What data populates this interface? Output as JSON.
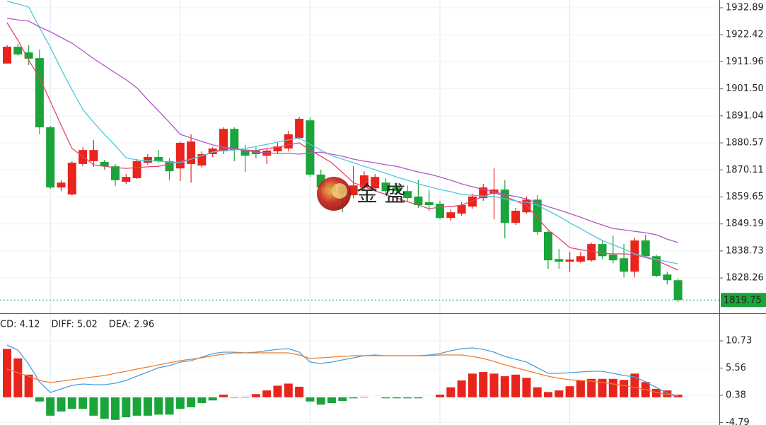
{
  "chart_data": [
    {
      "type": "candlestick",
      "watermark": "金 盛",
      "up_color": "#e8241c",
      "down_color": "#1aa43a",
      "open": [
        1911.3,
        1917.8,
        1915.6,
        1913.4,
        1886.6,
        1863.3,
        1860.6,
        1872.4,
        1873.5,
        1873.2,
        1871.5,
        1865.5,
        1866.9,
        1872.9,
        1875.1,
        1873.5,
        1870.7,
        1872.4,
        1871.8,
        1876.2,
        1877.3,
        1886.0,
        1877.8,
        1877.6,
        1875.6,
        1877.3,
        1878.4,
        1882.5,
        1889.3,
        1868.3,
        1864.1,
        1863.6,
        1860.3,
        1863.3,
        1863.0,
        1865.2,
        1863.3,
        1861.9,
        1859.8,
        1857.6,
        1857.0,
        1851.5,
        1853.2,
        1855.9,
        1859.2,
        1860.9,
        1862.5,
        1849.6,
        1853.7,
        1858.6,
        1846.1,
        1835.6,
        1834.6,
        1834.6,
        1835.1,
        1841.4,
        1837.3,
        1835.9,
        1830.7,
        1842.8,
        1836.7,
        1829.6,
        1827.4
      ],
      "high": [
        1918.4,
        1918.9,
        1918.4,
        1916.7,
        1887.1,
        1866.1,
        1873.5,
        1878.9,
        1881.7,
        1874.0,
        1872.4,
        1868.5,
        1874.3,
        1876.2,
        1877.8,
        1874.6,
        1881.1,
        1883.9,
        1877.3,
        1878.9,
        1886.6,
        1886.6,
        1879.8,
        1878.9,
        1878.4,
        1880.6,
        1885.2,
        1890.7,
        1890.4,
        1870.2,
        1866.1,
        1865.2,
        1871.5,
        1869.6,
        1868.5,
        1866.9,
        1865.2,
        1864.1,
        1866.3,
        1862.5,
        1858.1,
        1854.8,
        1857.6,
        1860.9,
        1864.7,
        1870.7,
        1866.1,
        1855.4,
        1859.8,
        1860.3,
        1846.6,
        1839.5,
        1838.4,
        1838.4,
        1841.9,
        1842.8,
        1844.7,
        1841.4,
        1843.9,
        1845.0,
        1837.3,
        1830.7,
        1828.0
      ],
      "low": [
        1911.3,
        1914.3,
        1910.7,
        1883.9,
        1862.8,
        1861.9,
        1860.3,
        1871.5,
        1871.3,
        1870.2,
        1863.9,
        1864.7,
        1866.6,
        1872.1,
        1872.9,
        1866.1,
        1865.8,
        1865.2,
        1871.0,
        1875.1,
        1876.2,
        1873.5,
        1869.3,
        1874.6,
        1872.4,
        1876.2,
        1877.3,
        1881.9,
        1867.4,
        1859.8,
        1857.8,
        1853.7,
        1859.2,
        1862.5,
        1862.0,
        1860.6,
        1860.3,
        1857.8,
        1855.4,
        1854.3,
        1851.0,
        1850.4,
        1852.4,
        1855.1,
        1858.1,
        1851.0,
        1843.6,
        1848.8,
        1853.2,
        1845.0,
        1831.8,
        1831.8,
        1830.7,
        1834.0,
        1834.6,
        1835.6,
        1834.0,
        1828.5,
        1828.5,
        1836.2,
        1828.5,
        1825.8,
        1818.9
      ],
      "close": [
        1917.8,
        1914.8,
        1913.2,
        1886.6,
        1863.3,
        1865.2,
        1872.9,
        1877.8,
        1877.8,
        1871.5,
        1866.1,
        1867.4,
        1873.5,
        1875.1,
        1873.5,
        1869.6,
        1880.6,
        1881.1,
        1876.2,
        1878.4,
        1886.0,
        1877.8,
        1875.6,
        1876.2,
        1877.6,
        1879.2,
        1883.9,
        1889.9,
        1868.3,
        1863.3,
        1861.4,
        1860.9,
        1864.1,
        1868.0,
        1867.4,
        1861.9,
        1861.9,
        1859.2,
        1856.5,
        1856.5,
        1851.5,
        1853.7,
        1856.5,
        1859.8,
        1863.3,
        1862.5,
        1849.6,
        1854.3,
        1858.6,
        1846.1,
        1835.1,
        1834.6,
        1835.4,
        1836.7,
        1841.4,
        1836.7,
        1835.1,
        1830.7,
        1842.8,
        1836.7,
        1829.1,
        1827.4,
        1819.75
      ],
      "series": [
        {
          "color": "#e5466f",
          "values": [
            1927.1,
            1920.3,
            1912.6,
            1905.8,
            1896.7,
            1887.4,
            1878.4,
            1875.4,
            1872.1,
            1871.5,
            1871.0,
            1870.7,
            1871.0,
            1871.3,
            1871.5,
            1872.4,
            1873.5,
            1874.3,
            1875.6,
            1877.0,
            1878.4,
            1878.1,
            1877.8,
            1877.6,
            1878.4,
            1878.9,
            1879.8,
            1880.6,
            1877.8,
            1875.4,
            1872.9,
            1869.1,
            1865.2,
            1863.6,
            1862.0,
            1860.6,
            1859.2,
            1857.8,
            1856.5,
            1855.1,
            1855.7,
            1855.9,
            1856.5,
            1858.1,
            1859.8,
            1861.4,
            1859.8,
            1858.1,
            1856.5,
            1851.5,
            1846.9,
            1843.6,
            1840.0,
            1839.2,
            1838.7,
            1837.8,
            1837.6,
            1837.6,
            1837.3,
            1836.2,
            1835.1,
            1833.2,
            1831.3
          ]
        },
        {
          "color": "#4cc8df",
          "values": [
            1935.4,
            1934.3,
            1933.2,
            1925.2,
            1917.6,
            1909.1,
            1901.1,
            1893.5,
            1888.5,
            1883.9,
            1879.5,
            1874.8,
            1874.0,
            1873.7,
            1873.5,
            1873.2,
            1872.9,
            1874.3,
            1875.6,
            1877.0,
            1877.6,
            1877.8,
            1878.4,
            1879.2,
            1880.0,
            1880.9,
            1881.7,
            1882.5,
            1880.0,
            1877.8,
            1875.6,
            1874.3,
            1872.9,
            1871.5,
            1870.2,
            1868.8,
            1867.4,
            1866.1,
            1864.7,
            1863.6,
            1862.5,
            1861.7,
            1860.6,
            1860.3,
            1860.0,
            1859.8,
            1858.9,
            1858.1,
            1857.6,
            1856.5,
            1854.3,
            1852.1,
            1849.6,
            1847.4,
            1845.0,
            1842.8,
            1841.1,
            1839.5,
            1837.6,
            1836.5,
            1835.4,
            1834.6,
            1833.7
          ]
        },
        {
          "color": "#b356c9",
          "values": [
            1928.8,
            1928.2,
            1927.7,
            1925.5,
            1923.6,
            1921.4,
            1919.2,
            1916.2,
            1913.2,
            1910.4,
            1907.7,
            1905.0,
            1901.9,
            1897.3,
            1892.9,
            1888.5,
            1883.9,
            1882.5,
            1881.1,
            1879.8,
            1878.9,
            1878.4,
            1877.6,
            1877.0,
            1876.7,
            1876.5,
            1876.5,
            1876.2,
            1876.7,
            1877.0,
            1876.2,
            1875.4,
            1874.3,
            1873.5,
            1872.9,
            1872.1,
            1871.5,
            1870.4,
            1869.3,
            1868.5,
            1867.4,
            1866.1,
            1864.7,
            1863.6,
            1862.5,
            1861.7,
            1860.6,
            1859.8,
            1858.9,
            1857.3,
            1855.9,
            1854.6,
            1853.2,
            1851.8,
            1850.2,
            1848.8,
            1847.4,
            1846.9,
            1846.3,
            1845.8,
            1845.0,
            1843.3,
            1842.0
          ]
        }
      ],
      "ylim": [
        1814.6,
        1935.9
      ],
      "yticks": [
        1932.89,
        1922.42,
        1911.96,
        {
          "value": 1901.5,
          "label": "1901.50"
        },
        1891.04,
        1880.57,
        1870.11,
        1859.65,
        1849.19,
        1838.73,
        1828.26
      ],
      "grid": true
    },
    {
      "type": "macd",
      "series": [
        {
          "name": "CD: 4.12",
          "style": "bar",
          "color": "#e8241c",
          "down_color": "#1aa43a",
          "values": [
            9.2,
            7.4,
            4.3,
            -0.8,
            -3.5,
            -2.7,
            -2.2,
            -2.2,
            -3.5,
            -4.1,
            -4.3,
            -3.8,
            -3.5,
            -3.5,
            -3.3,
            -3.3,
            -2.2,
            -1.9,
            -1.1,
            -0.6,
            0.5,
            -0.1,
            0.1,
            0.6,
            1.3,
            2.2,
            2.6,
            2.0,
            -0.8,
            -1.4,
            -1.1,
            -0.7,
            -0.2,
            0.1,
            0.0,
            -0.2,
            -0.2,
            -0.2,
            -0.2,
            0.0,
            0.5,
            1.9,
            3.2,
            4.5,
            4.8,
            4.5,
            4.0,
            4.3,
            3.7,
            1.9,
            1.0,
            1.3,
            2.1,
            3.2,
            3.5,
            3.5,
            3.5,
            3.3,
            4.5,
            2.9,
            1.6,
            1.3,
            0.5
          ]
        },
        {
          "name": "DIFF: 5.02",
          "style": "line",
          "color": "#4a9fe0",
          "values": [
            9.92,
            8.98,
            6.29,
            2.93,
            0.91,
            1.59,
            2.26,
            2.53,
            2.39,
            2.39,
            2.66,
            3.2,
            4.01,
            4.81,
            5.62,
            6.02,
            6.69,
            6.96,
            7.63,
            8.31,
            8.58,
            8.58,
            8.44,
            8.58,
            8.84,
            9.11,
            9.25,
            8.58,
            6.69,
            6.42,
            6.69,
            7.1,
            7.5,
            7.9,
            8.04,
            7.9,
            7.9,
            7.9,
            7.9,
            8.04,
            8.31,
            8.84,
            9.25,
            9.38,
            9.11,
            8.58,
            7.77,
            7.23,
            6.69,
            5.62,
            4.54,
            4.54,
            4.68,
            4.81,
            4.95,
            4.95,
            4.54,
            4.14,
            3.87,
            2.93,
            1.85,
            0.78,
            0.24
          ]
        },
        {
          "name": "DEA: 2.96",
          "style": "line",
          "color": "#f07d28",
          "values": [
            5.35,
            4.68,
            4.01,
            3.2,
            2.8,
            3.06,
            3.33,
            3.6,
            3.87,
            4.14,
            4.54,
            4.95,
            5.35,
            5.75,
            6.16,
            6.56,
            6.96,
            7.23,
            7.5,
            7.9,
            8.17,
            8.44,
            8.44,
            8.44,
            8.44,
            8.44,
            8.44,
            8.04,
            7.37,
            7.5,
            7.63,
            7.77,
            7.9,
            7.9,
            7.9,
            7.9,
            7.9,
            7.9,
            7.9,
            7.9,
            8.04,
            8.04,
            8.04,
            7.77,
            7.37,
            6.83,
            6.16,
            5.62,
            5.08,
            4.54,
            4.01,
            3.6,
            3.33,
            3.2,
            3.06,
            2.8,
            2.53,
            2.26,
            1.85,
            1.45,
            0.91,
            0.51,
            0.24
          ]
        }
      ],
      "ylim": [
        -5.27,
        15.7
      ],
      "yticks": [
        10.73,
        5.56,
        0.38,
        -4.79
      ],
      "grid": true
    }
  ]
}
